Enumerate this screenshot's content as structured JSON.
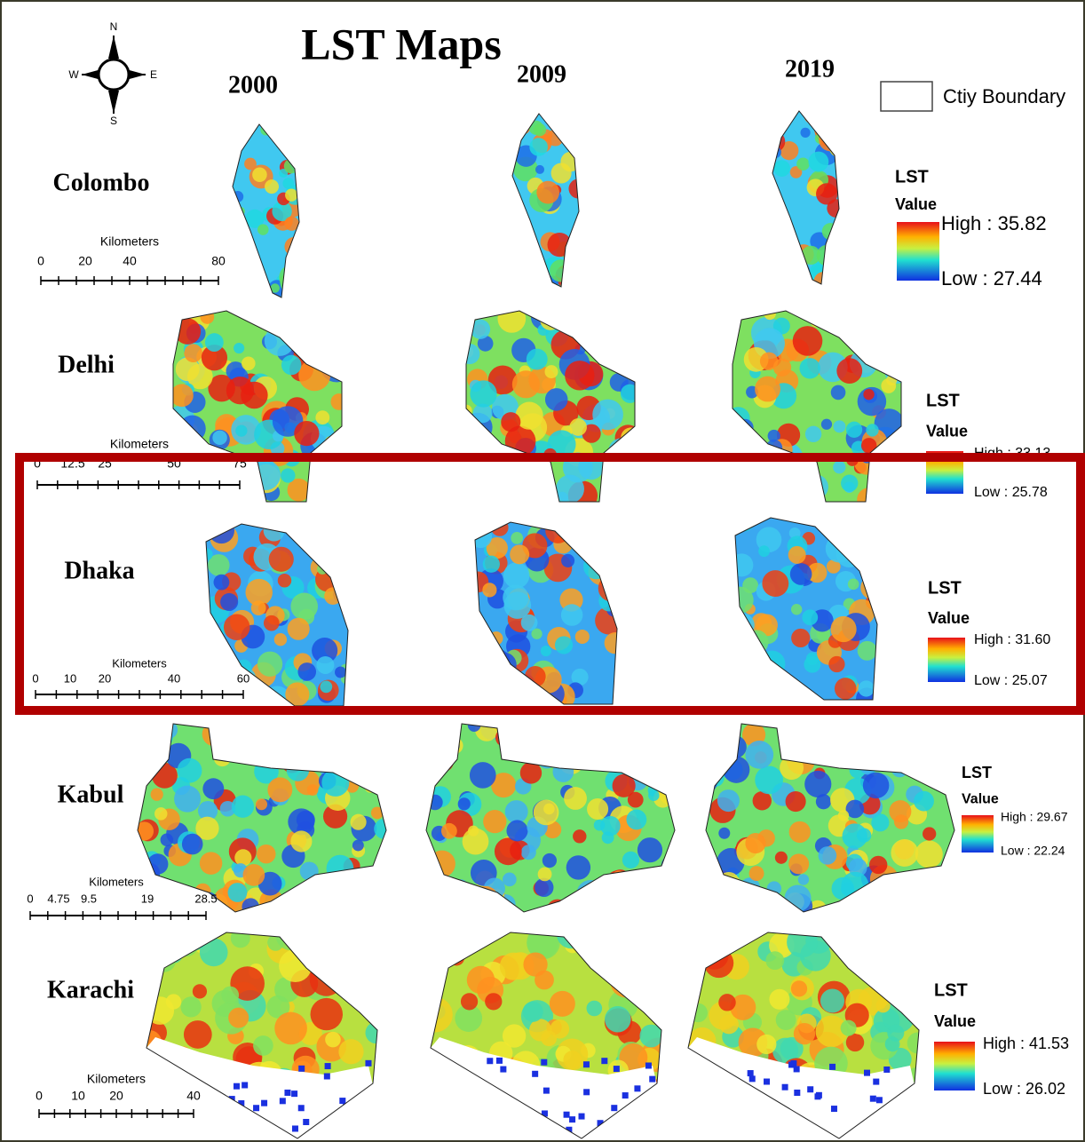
{
  "title": "LST Maps",
  "years": [
    "2000",
    "2009",
    "2019"
  ],
  "compass": {
    "n": "N",
    "e": "E",
    "s": "S",
    "w": "W"
  },
  "boundary_legend": "Ctiy Boundary",
  "cities": [
    {
      "name": "Colombo",
      "legend": {
        "title": "LST",
        "subtitle": "Value",
        "high": "High : 35.82",
        "low": "Low : 27.44"
      },
      "scale": {
        "unit": "Kilometers",
        "ticks": [
          "0",
          "20",
          "40",
          "80"
        ]
      }
    },
    {
      "name": "Delhi",
      "legend": {
        "title": "LST",
        "subtitle": "Value",
        "high": "High : 33.13",
        "low": "Low : 25.78"
      },
      "scale": {
        "unit": "Kilometers",
        "ticks": [
          "0",
          "12.5",
          "25",
          "50",
          "75"
        ]
      }
    },
    {
      "name": "Dhaka",
      "legend": {
        "title": "LST",
        "subtitle": "Value",
        "high": "High : 31.60",
        "low": "Low : 25.07"
      },
      "scale": {
        "unit": "Kilometers",
        "ticks": [
          "0",
          "10",
          "20",
          "40",
          "60"
        ]
      }
    },
    {
      "name": "Kabul",
      "legend": {
        "title": "LST",
        "subtitle": "Value",
        "high": "High : 29.67",
        "low": "Low : 22.24"
      },
      "scale": {
        "unit": "Kilometers",
        "ticks": [
          "0",
          "4.75",
          "9.5",
          "19",
          "28.5"
        ]
      }
    },
    {
      "name": "Karachi",
      "legend": {
        "title": "LST",
        "subtitle": "Value",
        "high": "High : 41.53",
        "low": "Low : 26.02"
      },
      "scale": {
        "unit": "Kilometers",
        "ticks": [
          "0",
          "10",
          "20",
          "40"
        ]
      }
    }
  ]
}
